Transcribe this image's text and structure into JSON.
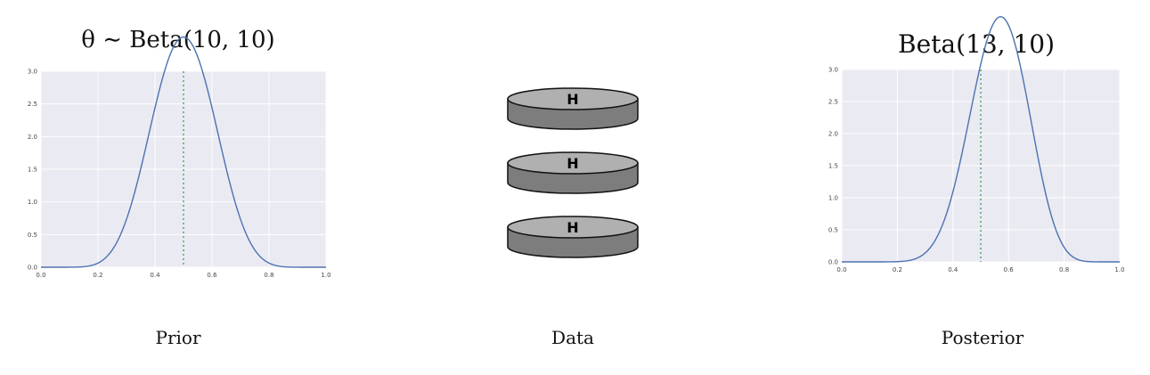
{
  "prior": {
    "title": "θ ∼ Beta(10, 10)",
    "label": "Prior",
    "alpha": 10,
    "beta": 10
  },
  "data": {
    "label": "Data",
    "coins": [
      "H",
      "H",
      "H"
    ]
  },
  "posterior": {
    "title": "Beta(13, 10)",
    "label": "Posterior",
    "alpha": 13,
    "beta": 10
  },
  "chart_data": [
    {
      "type": "line",
      "title": "θ ∼ Beta(10, 10)",
      "series": [
        {
          "name": "Beta(10,10) pdf",
          "alpha": 10,
          "beta": 10,
          "color": "#4c72b0"
        }
      ],
      "reference_line": {
        "x": 0.5,
        "style": "dotted",
        "color": "#55a868"
      },
      "xlim": [
        0.0,
        1.0
      ],
      "ylim": [
        0.0,
        3.0
      ],
      "xticks": [
        "0.0",
        "0.2",
        "0.4",
        "0.6",
        "0.8",
        "1.0"
      ],
      "yticks": [
        "0.0",
        "0.5",
        "1.0",
        "1.5",
        "2.0",
        "2.5",
        "3.0"
      ],
      "grid": true,
      "background": "#eaeaf2"
    },
    {
      "type": "line",
      "title": "Beta(13, 10)",
      "series": [
        {
          "name": "Beta(13,10) pdf",
          "alpha": 13,
          "beta": 10,
          "color": "#4c72b0"
        }
      ],
      "reference_line": {
        "x": 0.5,
        "style": "dotted",
        "color": "#55a868"
      },
      "xlim": [
        0.0,
        1.0
      ],
      "ylim": [
        0.0,
        3.0
      ],
      "xticks": [
        "0.0",
        "0.2",
        "0.4",
        "0.6",
        "0.8",
        "1.0"
      ],
      "yticks": [
        "0.0",
        "0.5",
        "1.0",
        "1.5",
        "2.0",
        "2.5",
        "3.0"
      ],
      "grid": true,
      "background": "#eaeaf2"
    }
  ]
}
